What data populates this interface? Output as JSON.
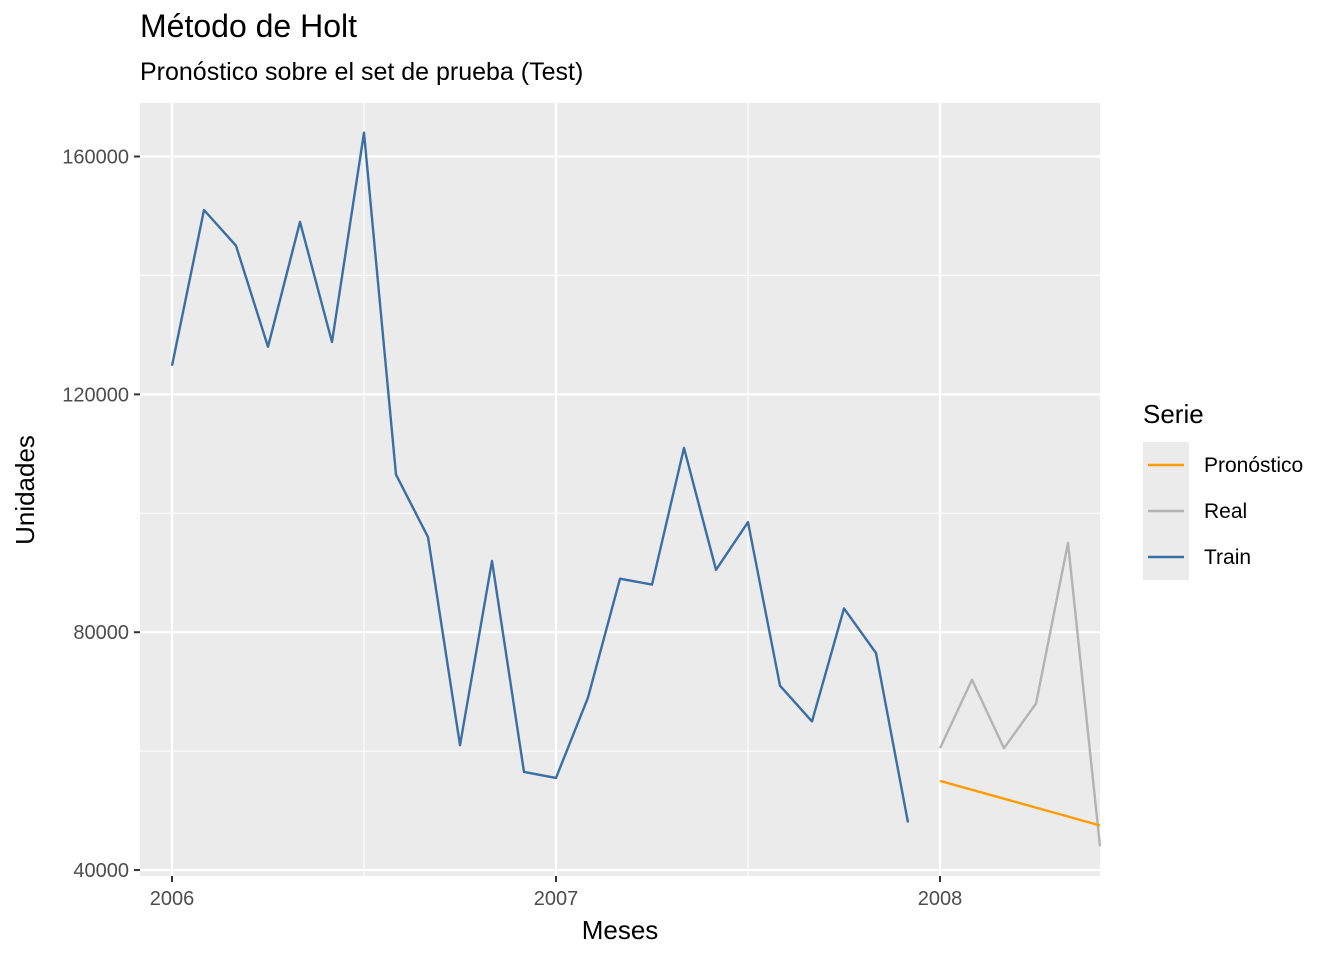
{
  "chart_data": {
    "type": "line",
    "title": "Método de Holt",
    "subtitle": "Pronóstico sobre el set de prueba (Test)",
    "xlabel": "Meses",
    "ylabel": "Unidades",
    "x_ticks": [
      "2006",
      "2007",
      "2008"
    ],
    "y_ticks": [
      "40000",
      "80000",
      "120000",
      "160000"
    ],
    "xlim": [
      "2005-12",
      "2008-06"
    ],
    "ylim": [
      39000,
      169000
    ],
    "grid": true,
    "legend": {
      "title": "Serie",
      "position": "right",
      "entries": [
        "Pronóstico",
        "Real",
        "Train"
      ]
    },
    "series": [
      {
        "name": "Train",
        "color": "#3a6ea5",
        "x": [
          "2006-01",
          "2006-02",
          "2006-03",
          "2006-04",
          "2006-05",
          "2006-06",
          "2006-07",
          "2006-08",
          "2006-09",
          "2006-10",
          "2006-11",
          "2006-12",
          "2007-01",
          "2007-02",
          "2007-03",
          "2007-04",
          "2007-05",
          "2007-06",
          "2007-07",
          "2007-08",
          "2007-09",
          "2007-10",
          "2007-11",
          "2007-12"
        ],
        "values": [
          124800,
          151000,
          145000,
          128000,
          149000,
          128800,
          164000,
          106500,
          96000,
          61000,
          92000,
          56500,
          55500,
          69000,
          89000,
          88000,
          111000,
          90500,
          98500,
          71000,
          65000,
          84000,
          76500,
          48000
        ]
      },
      {
        "name": "Real",
        "color": "#b3b3b3",
        "x": [
          "2008-01",
          "2008-02",
          "2008-03",
          "2008-04",
          "2008-05",
          "2008-06"
        ],
        "values": [
          60500,
          72000,
          60500,
          68000,
          95000,
          44000
        ]
      },
      {
        "name": "Pronóstico",
        "color": "#ff9a00",
        "x": [
          "2008-01",
          "2008-02",
          "2008-03",
          "2008-04",
          "2008-05",
          "2008-06"
        ],
        "values": [
          55000,
          53500,
          52000,
          50500,
          49000,
          47500
        ]
      }
    ]
  }
}
